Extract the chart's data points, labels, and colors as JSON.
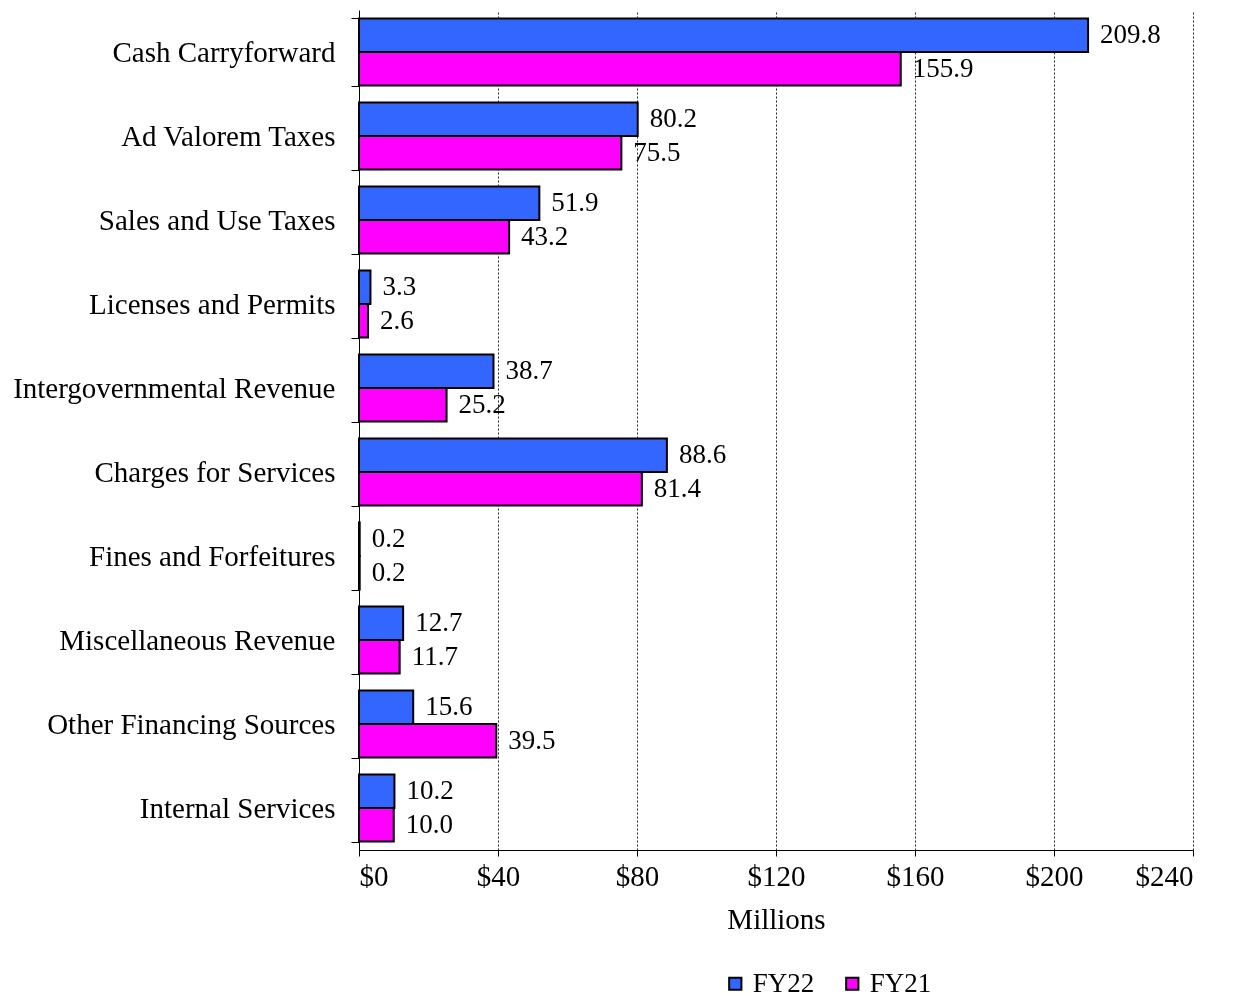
{
  "chart_data": {
    "type": "bar",
    "orientation": "horizontal",
    "categories": [
      "Cash Carryforward",
      "Ad Valorem Taxes",
      "Sales and Use Taxes",
      "Licenses and Permits",
      "Intergovernmental Revenue",
      "Charges for Services",
      "Fines and Forfeitures",
      "Miscellaneous Revenue",
      "Other Financing Sources",
      "Internal Services"
    ],
    "series": [
      {
        "name": "FY22",
        "color": "#3366ff",
        "values": [
          209.8,
          80.2,
          51.9,
          3.3,
          38.7,
          88.6,
          0.2,
          12.7,
          15.6,
          10.2
        ],
        "value_labels": [
          "209.8",
          "80.2",
          "51.9",
          "3.3",
          "38.7",
          "88.6",
          "0.2",
          "12.7",
          "15.6",
          "10.2"
        ]
      },
      {
        "name": "FY21",
        "color": "#ff00ff",
        "values": [
          155.9,
          75.5,
          43.2,
          2.6,
          25.2,
          81.4,
          0.2,
          11.7,
          39.5,
          10.0
        ],
        "value_labels": [
          "155.9",
          "75.5",
          "43.2",
          "2.6",
          "25.2",
          "81.4",
          "0.2",
          "11.7",
          "39.5",
          "10.0"
        ]
      }
    ],
    "xlabel": "Millions",
    "xlim": [
      0,
      240
    ],
    "xticks": [
      {
        "value": 0,
        "label": "$0"
      },
      {
        "value": 40,
        "label": "$40"
      },
      {
        "value": 80,
        "label": "$80"
      },
      {
        "value": 120,
        "label": "$120"
      },
      {
        "value": 160,
        "label": "$160"
      },
      {
        "value": 200,
        "label": "$200"
      },
      {
        "value": 240,
        "label": "$240"
      }
    ],
    "grid": "x",
    "legend": "bottom"
  }
}
